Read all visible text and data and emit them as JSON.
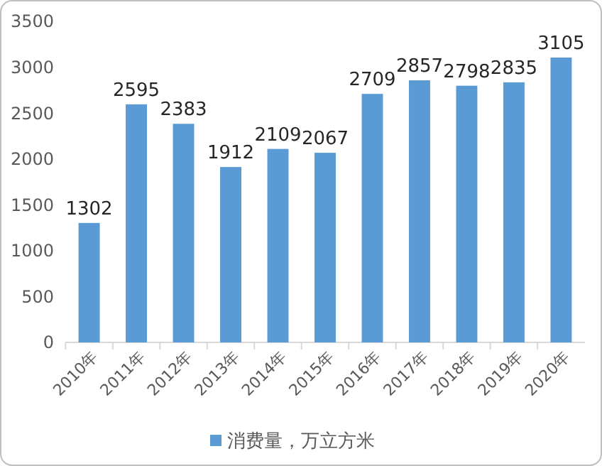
{
  "chart_data": {
    "type": "bar",
    "categories": [
      "2010年",
      "2011年",
      "2012年",
      "2013年",
      "2014年",
      "2015年",
      "2016年",
      "2017年",
      "2018年",
      "2019年",
      "2020年"
    ],
    "series": [
      {
        "name": "消费量，万立方米",
        "color": "#5b9bd5",
        "values": [
          1302,
          2595,
          2383,
          1912,
          2109,
          2067,
          2709,
          2857,
          2798,
          2835,
          3105
        ]
      }
    ],
    "ylim": [
      0,
      3500
    ],
    "yticks": [
      0,
      500,
      1000,
      1500,
      2000,
      2500,
      3000,
      3500
    ],
    "grid": false,
    "legend": "bottom",
    "data_labels": true
  }
}
